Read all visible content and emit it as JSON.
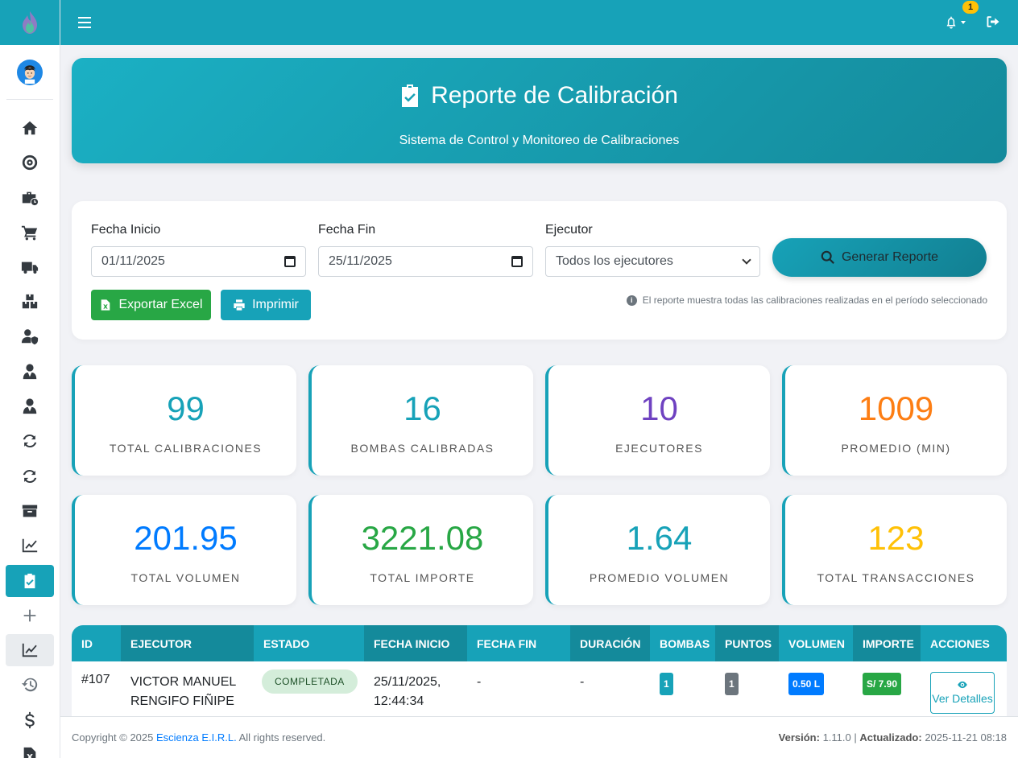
{
  "topbar": {
    "notification_count": "1"
  },
  "header": {
    "title": "Reporte de Calibración",
    "subtitle": "Sistema de Control y Monitoreo de Calibraciones"
  },
  "filters": {
    "start_label": "Fecha Inicio",
    "start_value": "01/11/2025",
    "end_label": "Fecha Fin",
    "end_value": "25/11/2025",
    "executor_label": "Ejecutor",
    "executor_value": "Todos los ejecutores",
    "generate_label": "Generar Reporte",
    "export_label": "Exportar Excel",
    "print_label": "Imprimir",
    "note": "El reporte muestra todas las calibraciones realizadas en el período seleccionado"
  },
  "stats": [
    {
      "value": "99",
      "label": "TOTAL CALIBRACIONES",
      "color": "#17a2b8"
    },
    {
      "value": "16",
      "label": "BOMBAS CALIBRADAS",
      "color": "#17a2b8"
    },
    {
      "value": "10",
      "label": "EJECUTORES",
      "color": "#6f42c1"
    },
    {
      "value": "1009",
      "label": "PROMEDIO (MIN)",
      "color": "#fd7e14"
    },
    {
      "value": "201.95",
      "label": "TOTAL VOLUMEN",
      "color": "#007bff"
    },
    {
      "value": "3221.08",
      "label": "TOTAL IMPORTE",
      "color": "#28a745"
    },
    {
      "value": "1.64",
      "label": "PROMEDIO VOLUMEN",
      "color": "#17a2b8"
    },
    {
      "value": "123",
      "label": "TOTAL TRANSACCIONES",
      "color": "#ffc107"
    }
  ],
  "table": {
    "columns": [
      "ID",
      "EJECUTOR",
      "ESTADO",
      "FECHA INICIO",
      "FECHA FIN",
      "DURACIÓN",
      "BOMBAS",
      "PUNTOS",
      "VOLUMEN",
      "IMPORTE",
      "ACCIONES"
    ],
    "rows": [
      {
        "id": "#107",
        "ejecutor": "VICTOR MANUEL RENGIFO FIÑIPE",
        "estado": "COMPLETADA",
        "fecha_inicio": "25/11/2025, 12:44:34",
        "fecha_fin": "-",
        "duracion": "-",
        "bombas": "1",
        "puntos": "1",
        "volumen": "0.50 L",
        "importe": "S/ 7.90",
        "accion": "Ver Detalles"
      }
    ]
  },
  "footer": {
    "copyright": "Copyright © 2025",
    "company": "Escienza E.I.R.L.",
    "rights": "All rights reserved.",
    "version_label": "Versión:",
    "version": "1.11.0",
    "separator": "|",
    "updated_label": "Actualizado:",
    "updated": "2025-11-21 08:18"
  },
  "colors": {
    "primary": "#17a2b8",
    "success": "#28a745"
  }
}
